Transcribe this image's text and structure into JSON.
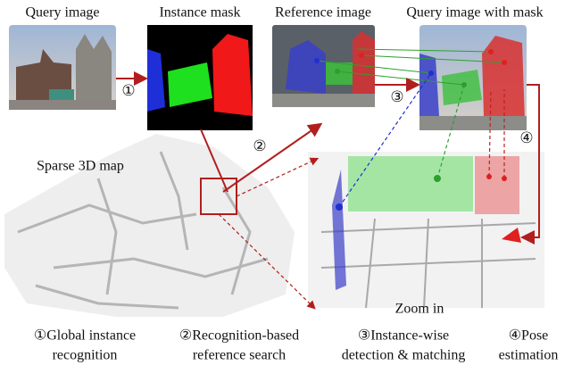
{
  "panels": [
    "Query image",
    "Instance mask",
    "Reference image",
    "Query image with mask"
  ],
  "steps": [
    "①",
    "②",
    "③",
    "④"
  ],
  "map_label": "Sparse 3D map",
  "zoom_label": "Zoom in",
  "captions": [
    {
      "lines": [
        "①Global  instance",
        "recognition"
      ]
    },
    {
      "lines": [
        "②Recognition-based",
        "reference search"
      ]
    },
    {
      "lines": [
        "③Instance-wise",
        "detection & matching"
      ]
    },
    {
      "lines": [
        "④Pose",
        "estimation"
      ]
    }
  ]
}
